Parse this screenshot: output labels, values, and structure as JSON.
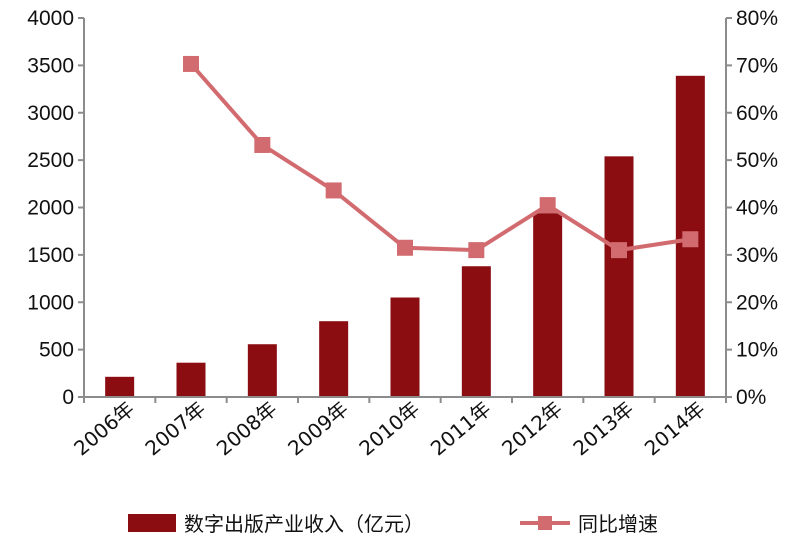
{
  "chart_data": {
    "type": "bar",
    "categories": [
      "2006年",
      "2007年",
      "2008年",
      "2009年",
      "2010年",
      "2011年",
      "2012年",
      "2013年",
      "2014年"
    ],
    "series": [
      {
        "name": "数字出版产业收入（亿元）",
        "type": "bar",
        "axis": "left",
        "values": [
          213,
          362,
          557,
          800,
          1050,
          1380,
          1940,
          2540,
          3390
        ]
      },
      {
        "name": "同比增速",
        "type": "line",
        "axis": "right",
        "values": [
          null,
          70.3,
          53.2,
          43.6,
          31.5,
          31.0,
          40.5,
          31.0,
          33.3
        ]
      }
    ],
    "y_left": {
      "range": [
        0,
        4000
      ],
      "ticks": [
        "0",
        "500",
        "1000",
        "1500",
        "2000",
        "2500",
        "3000",
        "3500",
        "4000"
      ]
    },
    "y_right": {
      "range": [
        0,
        80
      ],
      "ticks": [
        "0%",
        "10%",
        "20%",
        "30%",
        "40%",
        "50%",
        "60%",
        "70%",
        "80%"
      ]
    },
    "legend": {
      "position": "bottom",
      "items": [
        "数字出版产业收入（亿元）",
        "同比增速"
      ]
    },
    "grid": false,
    "colors": {
      "bar": "#8b0d12",
      "line": "#d26b6f",
      "axis": "#8c8c8c"
    }
  }
}
